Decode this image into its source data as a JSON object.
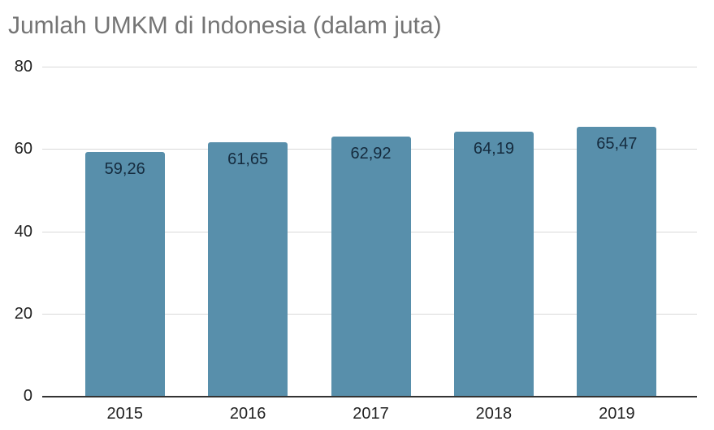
{
  "chart_data": {
    "type": "bar",
    "title": "Jumlah UMKM di Indonesia (dalam juta)",
    "categories": [
      "2015",
      "2016",
      "2017",
      "2018",
      "2019"
    ],
    "values": [
      59.26,
      61.65,
      62.92,
      64.19,
      65.47
    ],
    "value_labels": [
      "59,26",
      "61,65",
      "62,92",
      "64,19",
      "65,47"
    ],
    "xlabel": "",
    "ylabel": "",
    "ylim": [
      0,
      80
    ],
    "yticks": [
      0,
      20,
      40,
      60,
      80
    ],
    "grid": true,
    "legend": false,
    "colors": {
      "bar": "#588fab",
      "title": "#757575",
      "value_label": "#152b3e",
      "axis_label": "#222222",
      "gridline": "#d9d9d9",
      "baseline": "#333333",
      "background": "#ffffff"
    }
  }
}
